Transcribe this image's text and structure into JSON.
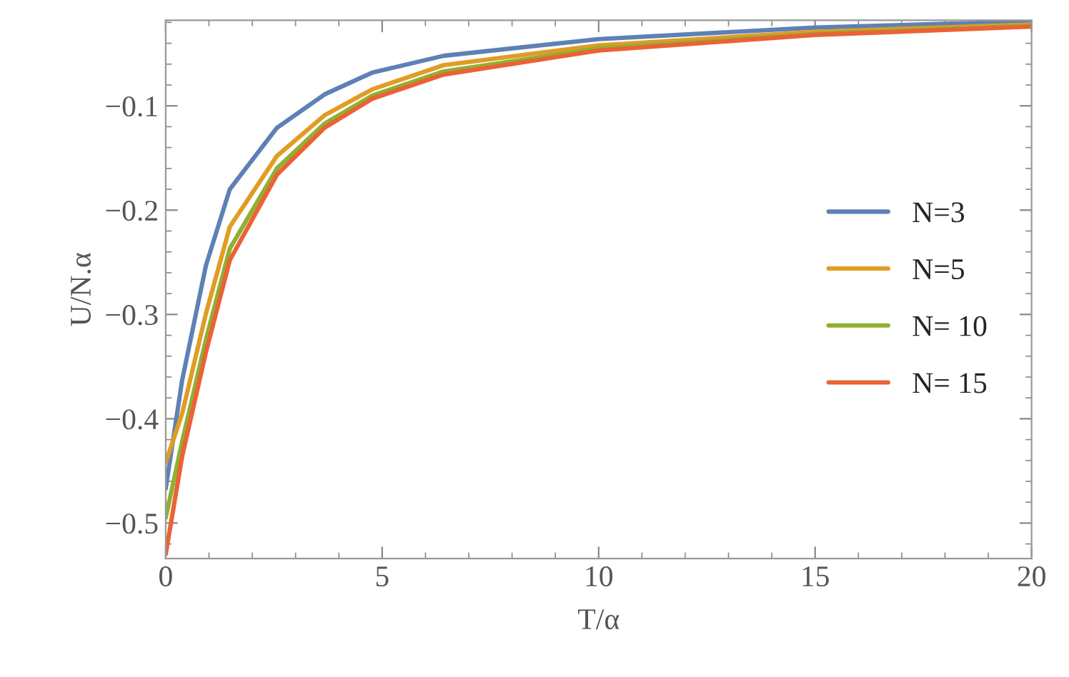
{
  "chart_data": {
    "type": "line",
    "xlabel": "T/α",
    "ylabel": "U/N.α",
    "x": [
      0,
      0.38,
      0.93,
      1.48,
      2.57,
      3.67,
      4.78,
      6.42,
      10,
      15,
      20
    ],
    "series": [
      {
        "name": "N=3",
        "color": "#5e81b5",
        "values": [
          -0.467,
          -0.363,
          -0.253,
          -0.18,
          -0.121,
          -0.089,
          -0.068,
          -0.052,
          -0.036,
          -0.025,
          -0.019
        ]
      },
      {
        "name": "N=5",
        "color": "#e19c24",
        "values": [
          -0.442,
          -0.395,
          -0.299,
          -0.216,
          -0.148,
          -0.109,
          -0.084,
          -0.061,
          -0.042,
          -0.029,
          -0.022
        ]
      },
      {
        "name": "N= 10",
        "color": "#8fb032",
        "values": [
          -0.495,
          -0.422,
          -0.324,
          -0.237,
          -0.16,
          -0.117,
          -0.09,
          -0.067,
          -0.045,
          -0.031,
          -0.023
        ]
      },
      {
        "name": "N= 15",
        "color": "#eb6235",
        "values": [
          -0.53,
          -0.436,
          -0.336,
          -0.248,
          -0.166,
          -0.121,
          -0.093,
          -0.07,
          -0.047,
          -0.032,
          -0.024
        ]
      }
    ],
    "xlim": [
      0,
      20
    ],
    "ylim": [
      -0.534,
      -0.018
    ],
    "xticks": [
      0,
      5,
      10,
      15,
      20
    ],
    "yticks": [
      {
        "value": -0.5,
        "label": "−0.5"
      },
      {
        "value": -0.4,
        "label": "−0.4"
      },
      {
        "value": -0.3,
        "label": "−0.3"
      },
      {
        "value": -0.2,
        "label": "−0.2"
      },
      {
        "value": -0.1,
        "label": "−0.1"
      }
    ],
    "grid": false,
    "legend": "right",
    "marker": "none",
    "line_style": "solid"
  }
}
